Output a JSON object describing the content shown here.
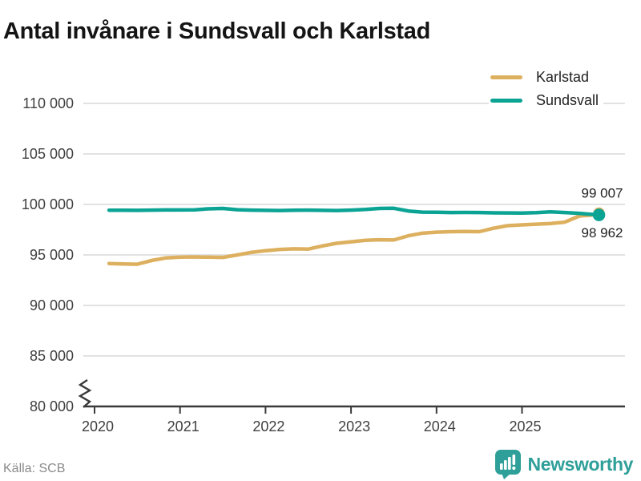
{
  "title": "Antal invånare i Sundsvall och Karlstad",
  "source": "Källa: SCB",
  "branding": {
    "name": "Newsworthy",
    "logo_icon": "newsworthy-chart-bubble-icon",
    "color": "#2f9f99"
  },
  "colors": {
    "karlstad": "#ddb05f",
    "sundsvall": "#0ba394",
    "grid": "#e2e2e2",
    "axis": "#3a3a3a",
    "label_text": "#222222"
  },
  "chart_data": {
    "type": "line",
    "title": "Antal invånare i Sundsvall och Karlstad",
    "xlabel": "",
    "ylabel": "",
    "ylim": [
      80000,
      110000
    ],
    "xlim": [
      2019.83,
      2026.2
    ],
    "grid": true,
    "axis_break": true,
    "legend_position": "top-right",
    "y_ticks": [
      {
        "value": 110000,
        "label": "110 000"
      },
      {
        "value": 105000,
        "label": "105 000"
      },
      {
        "value": 100000,
        "label": "100 000"
      },
      {
        "value": 95000,
        "label": "95 000"
      },
      {
        "value": 90000,
        "label": "90 000"
      },
      {
        "value": 85000,
        "label": "85 000"
      },
      {
        "value": 80000,
        "label": "80 000"
      }
    ],
    "x_ticks": [
      {
        "value": 2020,
        "label": "2020"
      },
      {
        "value": 2021,
        "label": "2021"
      },
      {
        "value": 2022,
        "label": "2022"
      },
      {
        "value": 2023,
        "label": "2023"
      },
      {
        "value": 2024,
        "label": "2024"
      },
      {
        "value": 2025,
        "label": "2025"
      }
    ],
    "x": [
      2020.17,
      2020.33,
      2020.5,
      2020.67,
      2020.83,
      2021.0,
      2021.17,
      2021.33,
      2021.5,
      2021.67,
      2021.83,
      2022.0,
      2022.17,
      2022.33,
      2022.5,
      2022.67,
      2022.83,
      2023.0,
      2023.17,
      2023.33,
      2023.5,
      2023.67,
      2023.83,
      2024.0,
      2024.17,
      2024.33,
      2024.5,
      2024.67,
      2024.83,
      2025.0,
      2025.17,
      2025.33,
      2025.5,
      2025.67,
      2025.9
    ],
    "series": [
      {
        "name": "Karlstad",
        "color": "#ddb05f",
        "end_label": "99 007",
        "end_label_value": 99007,
        "end_label_pos": "above",
        "end_marker": true,
        "values": [
          94150,
          94100,
          94080,
          94450,
          94700,
          94780,
          94800,
          94780,
          94750,
          95000,
          95250,
          95420,
          95550,
          95600,
          95580,
          95900,
          96150,
          96300,
          96450,
          96500,
          96480,
          96900,
          97150,
          97250,
          97300,
          97320,
          97300,
          97650,
          97900,
          97980,
          98050,
          98100,
          98250,
          98850,
          99007
        ]
      },
      {
        "name": "Sundsvall",
        "color": "#0ba394",
        "end_label": "98 962",
        "end_label_value": 98962,
        "end_label_pos": "below",
        "end_marker": true,
        "values": [
          99430,
          99420,
          99410,
          99440,
          99450,
          99450,
          99470,
          99560,
          99600,
          99480,
          99440,
          99410,
          99400,
          99430,
          99440,
          99410,
          99400,
          99440,
          99500,
          99600,
          99620,
          99350,
          99240,
          99230,
          99200,
          99210,
          99200,
          99170,
          99160,
          99150,
          99180,
          99260,
          99200,
          99120,
          98962
        ]
      }
    ]
  }
}
